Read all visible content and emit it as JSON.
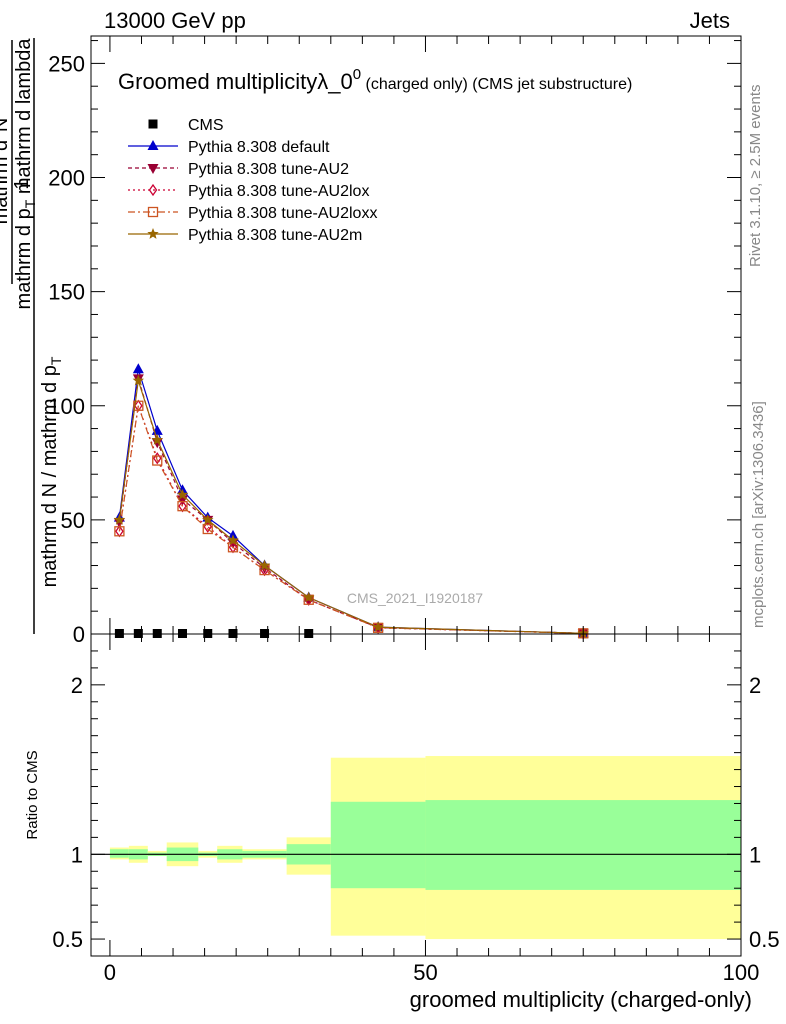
{
  "header": {
    "left_label": "13000 GeV pp",
    "right_label": "Jets"
  },
  "side_labels": {
    "rivet": "Rivet 3.1.10, ≥ 2.5M events",
    "mcplots": "mcplots.cern.ch [arXiv:1306.3436]"
  },
  "watermark": "CMS_2021_I1920187",
  "chart_data": [
    {
      "type": "line",
      "title_main": "Groomed multiplicityλ_0",
      "title_sup": "0",
      "title_suffix": " (charged only) (CMS jet substructure)",
      "ylabel_parts": {
        "num_1": "1",
        "den_1": "mathrm d N / mathrm d p",
        "den_1_sub": "T",
        "num_2": "mathrm d",
        "num_2_sup": "2",
        "num_2_rest": "N",
        "den_2a": "mathrm d p",
        "den_2a_sub": "T",
        "den_2b": " mathrm d lambda"
      },
      "xlim": [
        -3,
        100
      ],
      "ylim": [
        0,
        262
      ],
      "yticks": [
        0,
        50,
        100,
        150,
        200,
        250
      ],
      "legend_position": "top-left",
      "series": [
        {
          "name": "CMS",
          "marker": "square-filled",
          "color": "#000000",
          "dash": "",
          "x": [
            1.5,
            4.5,
            7.5,
            11.5,
            15.5,
            19.5,
            24.5,
            31.5
          ],
          "y": [
            0,
            0,
            0,
            0,
            0,
            0,
            0,
            0
          ]
        },
        {
          "name": "Pythia 8.308 default",
          "marker": "triangle-up-filled",
          "color": "#0000cc",
          "dash": "",
          "x": [
            1.5,
            4.5,
            7.5,
            11.5,
            15.5,
            19.5,
            24.5,
            31.5,
            42.5,
            75
          ],
          "y": [
            51,
            116,
            89,
            63,
            51,
            43,
            30,
            16,
            3,
            0.3
          ]
        },
        {
          "name": "Pythia 8.308 tune-AU2",
          "marker": "triangle-down-filled",
          "color": "#990033",
          "dash": "4,3",
          "x": [
            1.5,
            4.5,
            7.5,
            11.5,
            15.5,
            19.5,
            24.5,
            31.5,
            42.5,
            75
          ],
          "y": [
            49,
            112,
            84,
            59,
            50,
            40,
            29,
            15,
            2.8,
            0.3
          ]
        },
        {
          "name": "Pythia 8.308 tune-AU2lox",
          "marker": "diamond-open",
          "color": "#cc0033",
          "dash": "2,3",
          "x": [
            1.5,
            4.5,
            7.5,
            11.5,
            15.5,
            19.5,
            24.5,
            31.5,
            42.5,
            75
          ],
          "y": [
            45,
            100,
            77,
            56,
            47,
            38,
            28,
            15,
            2.7,
            0.3
          ]
        },
        {
          "name": "Pythia 8.308 tune-AU2loxx",
          "marker": "square-open",
          "color": "#cc5522",
          "dash": "7,3,2,3",
          "x": [
            1.5,
            4.5,
            7.5,
            11.5,
            15.5,
            19.5,
            24.5,
            31.5,
            42.5,
            75
          ],
          "y": [
            45,
            100,
            76,
            56,
            46,
            38,
            28,
            15,
            2.7,
            0.3
          ]
        },
        {
          "name": "Pythia 8.308 tune-AU2m",
          "marker": "star-filled",
          "color": "#996600",
          "dash": "",
          "x": [
            1.5,
            4.5,
            7.5,
            11.5,
            15.5,
            19.5,
            24.5,
            31.5,
            42.5,
            75
          ],
          "y": [
            50,
            111,
            85,
            61,
            50,
            41,
            30,
            16,
            3,
            0.3
          ]
        }
      ]
    },
    {
      "type": "area",
      "ylabel": "Ratio to CMS",
      "xlabel": "groomed multiplicity (charged-only)",
      "xlim": [
        -3,
        100
      ],
      "ylim": [
        0.4,
        2.3
      ],
      "xticks": [
        0,
        50,
        100
      ],
      "yticks": [
        0.5,
        1,
        2
      ],
      "ytick_labels": [
        "0.5",
        "1",
        "2"
      ],
      "reference_line": 1,
      "bands": {
        "bin_edges": [
          0,
          3,
          6,
          9,
          14,
          17,
          21,
          28,
          35,
          50,
          100
        ],
        "outer_lo": [
          0.97,
          0.95,
          0.99,
          0.93,
          0.98,
          0.95,
          0.97,
          0.88,
          0.52,
          0.5
        ],
        "outer_hi": [
          1.04,
          1.05,
          1.02,
          1.07,
          1.02,
          1.05,
          1.03,
          1.1,
          1.57,
          1.58
        ],
        "inner_lo": [
          0.98,
          0.97,
          0.99,
          0.96,
          0.99,
          0.97,
          0.98,
          0.94,
          0.8,
          0.79
        ],
        "inner_hi": [
          1.03,
          1.03,
          1.01,
          1.04,
          1.01,
          1.03,
          1.02,
          1.06,
          1.31,
          1.32
        ],
        "outer_color": "#ffff99",
        "inner_color": "#99ff99"
      }
    }
  ]
}
